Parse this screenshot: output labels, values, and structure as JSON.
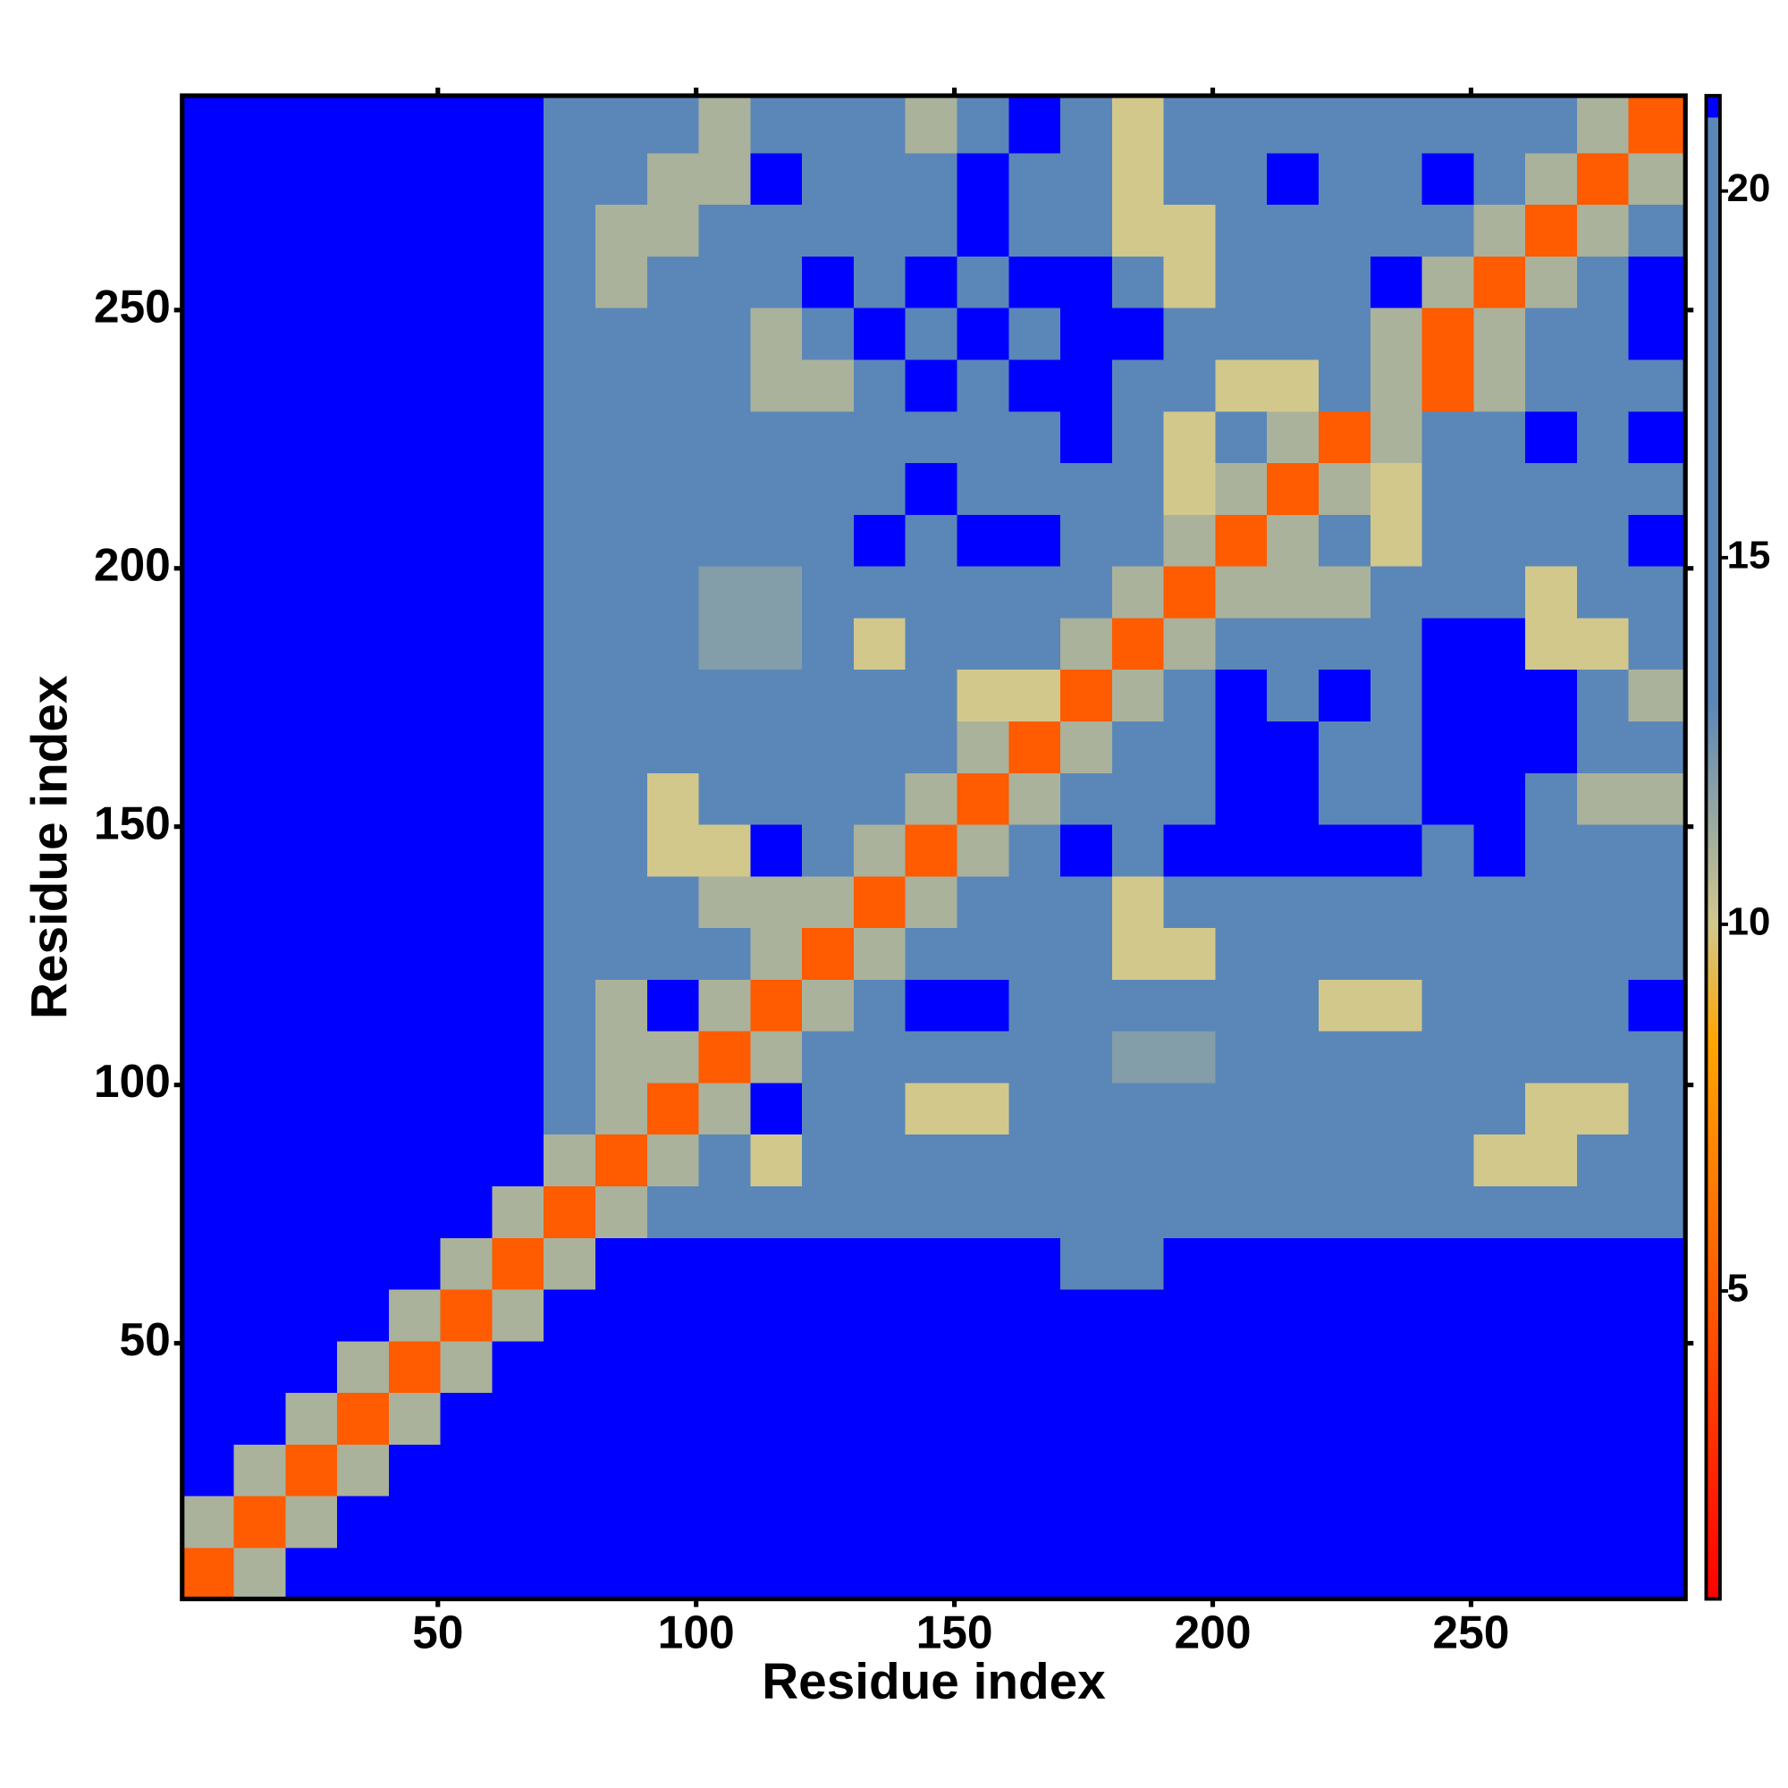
{
  "chart_data": {
    "type": "heatmap",
    "x_label": "Residue index",
    "y_label": "Residue index",
    "xlim": [
      0.5,
      291.5
    ],
    "ylim": [
      0.5,
      291.5
    ],
    "xticks": [
      50,
      100,
      150,
      200,
      250
    ],
    "yticks": [
      50,
      100,
      150,
      200,
      250
    ],
    "xbins": [
      0.5,
      10.5,
      20.5,
      30.5,
      40.5,
      50.5,
      60.5,
      70.5,
      80.5,
      90.5,
      100.5,
      110.5,
      120.5,
      130.5,
      140.5,
      150.5,
      160.5,
      170.5,
      180.5,
      190.5,
      200.5,
      210.5,
      220.5,
      230.5,
      240.5,
      250.5,
      260.5,
      270.5,
      280.5,
      291.5
    ],
    "ybins": [
      0.5,
      10.5,
      20.5,
      30.5,
      40.5,
      50.5,
      60.5,
      70.5,
      80.5,
      90.5,
      100.5,
      110.5,
      120.5,
      130.5,
      140.5,
      150.5,
      160.5,
      170.5,
      180.5,
      190.5,
      200.5,
      210.5,
      220.5,
      230.5,
      240.5,
      250.5,
      260.5,
      270.5,
      280.5,
      291.5
    ],
    "colorbar": {
      "lim": [
        0.8,
        21.3
      ],
      "ticks": [
        5,
        10,
        15,
        20
      ]
    },
    "colorscale": [
      {
        "value": 0.8,
        "color": "#ff0000"
      },
      {
        "value": 8.4,
        "color": "#ffa500"
      },
      {
        "value": 10,
        "color": "#d2c88c"
      },
      {
        "value": 13,
        "color": "#5b87b8"
      },
      {
        "value": 21,
        "color": "#5b87b8"
      },
      {
        "value": 21,
        "color": "#0000ff"
      },
      {
        "value": 21.3,
        "color": "#0000ff"
      }
    ],
    "z": [
      [
        5,
        11,
        22,
        22,
        22,
        22,
        22,
        22,
        22,
        22,
        22,
        22,
        22,
        22,
        22,
        22,
        22,
        22,
        22,
        22,
        22,
        22,
        22,
        22,
        22,
        22,
        22,
        22,
        22
      ],
      [
        11,
        5,
        11,
        22,
        22,
        22,
        22,
        22,
        22,
        22,
        22,
        22,
        22,
        22,
        22,
        22,
        22,
        22,
        22,
        22,
        22,
        22,
        22,
        22,
        22,
        22,
        22,
        22,
        22
      ],
      [
        22,
        11,
        5,
        11,
        22,
        22,
        22,
        22,
        22,
        22,
        22,
        22,
        22,
        22,
        22,
        22,
        22,
        22,
        22,
        22,
        22,
        22,
        22,
        22,
        22,
        22,
        22,
        22,
        22
      ],
      [
        22,
        22,
        11,
        5,
        11,
        22,
        22,
        22,
        22,
        22,
        22,
        22,
        22,
        22,
        22,
        22,
        22,
        22,
        22,
        22,
        22,
        22,
        22,
        22,
        22,
        22,
        22,
        22,
        22
      ],
      [
        22,
        22,
        22,
        11,
        5,
        11,
        22,
        22,
        22,
        22,
        22,
        22,
        22,
        22,
        22,
        22,
        22,
        22,
        22,
        22,
        22,
        22,
        22,
        22,
        22,
        22,
        22,
        22,
        22
      ],
      [
        22,
        22,
        22,
        22,
        11,
        5,
        11,
        22,
        22,
        22,
        22,
        22,
        22,
        22,
        22,
        22,
        22,
        22,
        22,
        22,
        22,
        22,
        22,
        22,
        22,
        22,
        22,
        22,
        22
      ],
      [
        22,
        22,
        22,
        22,
        22,
        11,
        5,
        11,
        22,
        22,
        22,
        22,
        22,
        22,
        22,
        22,
        22,
        19,
        19,
        22,
        22,
        22,
        22,
        22,
        22,
        22,
        22,
        22,
        22
      ],
      [
        22,
        22,
        22,
        22,
        22,
        22,
        11,
        5,
        11,
        14,
        20,
        20,
        20,
        20,
        20,
        20,
        20,
        20,
        20,
        20,
        20,
        20,
        20,
        20,
        20,
        20,
        20,
        20,
        20
      ],
      [
        22,
        22,
        22,
        22,
        22,
        22,
        22,
        11,
        5,
        11,
        14,
        10,
        17,
        17,
        17,
        17,
        17,
        17,
        17,
        17,
        17,
        17,
        17,
        17,
        17,
        10,
        10,
        17,
        17
      ],
      [
        22,
        22,
        22,
        22,
        22,
        22,
        22,
        19,
        11,
        5,
        11,
        22,
        17,
        17,
        10,
        10,
        17,
        17,
        17,
        17,
        17,
        17,
        17,
        17,
        17,
        17,
        10,
        10,
        17
      ],
      [
        22,
        22,
        22,
        22,
        22,
        22,
        22,
        19,
        11,
        11,
        5,
        11,
        14,
        17,
        17,
        17,
        17,
        17,
        12,
        12,
        17,
        17,
        17,
        17,
        17,
        17,
        17,
        17,
        17
      ],
      [
        22,
        22,
        22,
        22,
        22,
        22,
        22,
        19,
        11,
        22,
        11,
        5,
        11,
        14,
        22,
        22,
        17,
        17,
        17,
        17,
        17,
        17,
        10,
        10,
        17,
        17,
        17,
        17,
        22
      ],
      [
        22,
        22,
        22,
        22,
        22,
        22,
        22,
        19,
        17,
        17,
        14,
        11,
        5,
        11,
        14,
        17,
        17,
        17,
        10,
        10,
        17,
        17,
        17,
        17,
        17,
        17,
        17,
        17,
        17
      ],
      [
        22,
        22,
        22,
        22,
        22,
        22,
        22,
        19,
        17,
        17,
        11,
        11,
        11,
        5,
        11,
        14,
        17,
        17,
        10,
        17,
        17,
        17,
        17,
        17,
        17,
        17,
        17,
        17,
        17
      ],
      [
        22,
        22,
        22,
        22,
        22,
        22,
        22,
        19,
        17,
        10,
        10,
        22,
        14,
        11,
        5,
        11,
        14,
        22,
        17,
        22,
        22,
        22,
        22,
        22,
        17,
        22,
        17,
        17,
        17
      ],
      [
        22,
        22,
        22,
        22,
        22,
        22,
        22,
        19,
        17,
        10,
        17,
        17,
        17,
        14,
        11,
        5,
        11,
        14,
        17,
        17,
        22,
        22,
        17,
        17,
        22,
        22,
        17,
        11,
        11
      ],
      [
        22,
        22,
        22,
        22,
        22,
        22,
        22,
        19,
        17,
        17,
        17,
        17,
        17,
        17,
        14,
        11,
        5,
        11,
        14,
        17,
        22,
        22,
        17,
        17,
        22,
        22,
        22,
        17,
        17
      ],
      [
        22,
        22,
        22,
        22,
        22,
        22,
        22,
        19,
        17,
        17,
        17,
        17,
        17,
        17,
        17,
        10,
        10,
        5,
        11,
        14,
        22,
        17,
        22,
        17,
        22,
        22,
        22,
        17,
        11
      ],
      [
        22,
        22,
        22,
        22,
        22,
        22,
        22,
        19,
        17,
        17,
        12,
        12,
        17,
        10,
        17,
        17,
        14,
        11,
        5,
        11,
        14,
        17,
        17,
        17,
        22,
        22,
        10,
        10,
        17
      ],
      [
        22,
        22,
        22,
        22,
        22,
        22,
        22,
        19,
        17,
        17,
        12,
        12,
        17,
        17,
        17,
        17,
        17,
        14,
        11,
        5,
        11,
        11,
        11,
        17,
        17,
        17,
        10,
        17,
        17
      ],
      [
        22,
        22,
        22,
        22,
        22,
        22,
        22,
        19,
        17,
        17,
        17,
        17,
        17,
        22,
        17,
        22,
        22,
        17,
        14,
        11,
        5,
        11,
        14,
        10,
        17,
        17,
        17,
        17,
        22
      ],
      [
        22,
        22,
        22,
        22,
        22,
        22,
        22,
        19,
        17,
        17,
        17,
        17,
        17,
        17,
        22,
        17,
        17,
        17,
        17,
        10,
        11,
        5,
        11,
        10,
        17,
        17,
        17,
        17,
        17
      ],
      [
        22,
        22,
        22,
        22,
        22,
        22,
        22,
        19,
        17,
        17,
        17,
        17,
        17,
        17,
        17,
        17,
        17,
        22,
        17,
        10,
        14,
        11,
        5,
        11,
        14,
        17,
        22,
        17,
        22
      ],
      [
        22,
        22,
        22,
        22,
        22,
        22,
        22,
        19,
        17,
        17,
        17,
        11,
        11,
        17,
        22,
        17,
        22,
        22,
        17,
        17,
        10,
        10,
        14,
        11,
        5,
        11,
        14,
        17,
        17
      ],
      [
        22,
        22,
        22,
        22,
        22,
        22,
        22,
        19,
        17,
        17,
        17,
        11,
        17,
        22,
        17,
        22,
        17,
        22,
        22,
        17,
        17,
        17,
        14,
        11,
        5,
        11,
        14,
        17,
        22
      ],
      [
        22,
        22,
        22,
        22,
        22,
        22,
        22,
        19,
        11,
        17,
        17,
        17,
        22,
        17,
        22,
        17,
        22,
        22,
        17,
        10,
        17,
        17,
        17,
        22,
        11,
        5,
        11,
        14,
        22
      ],
      [
        22,
        22,
        22,
        22,
        22,
        22,
        22,
        19,
        11,
        11,
        17,
        17,
        17,
        17,
        17,
        22,
        17,
        17,
        10,
        10,
        17,
        17,
        17,
        17,
        17,
        11,
        5,
        11,
        14
      ],
      [
        22,
        22,
        22,
        22,
        22,
        22,
        22,
        19,
        17,
        11,
        11,
        22,
        17,
        17,
        17,
        22,
        17,
        17,
        10,
        17,
        17,
        22,
        17,
        17,
        22,
        14,
        11,
        5,
        11
      ],
      [
        22,
        22,
        22,
        22,
        22,
        22,
        22,
        19,
        17,
        17,
        11,
        17,
        17,
        17,
        11,
        17,
        22,
        17,
        10,
        17,
        17,
        17,
        17,
        17,
        17,
        17,
        14,
        11,
        5
      ]
    ]
  }
}
